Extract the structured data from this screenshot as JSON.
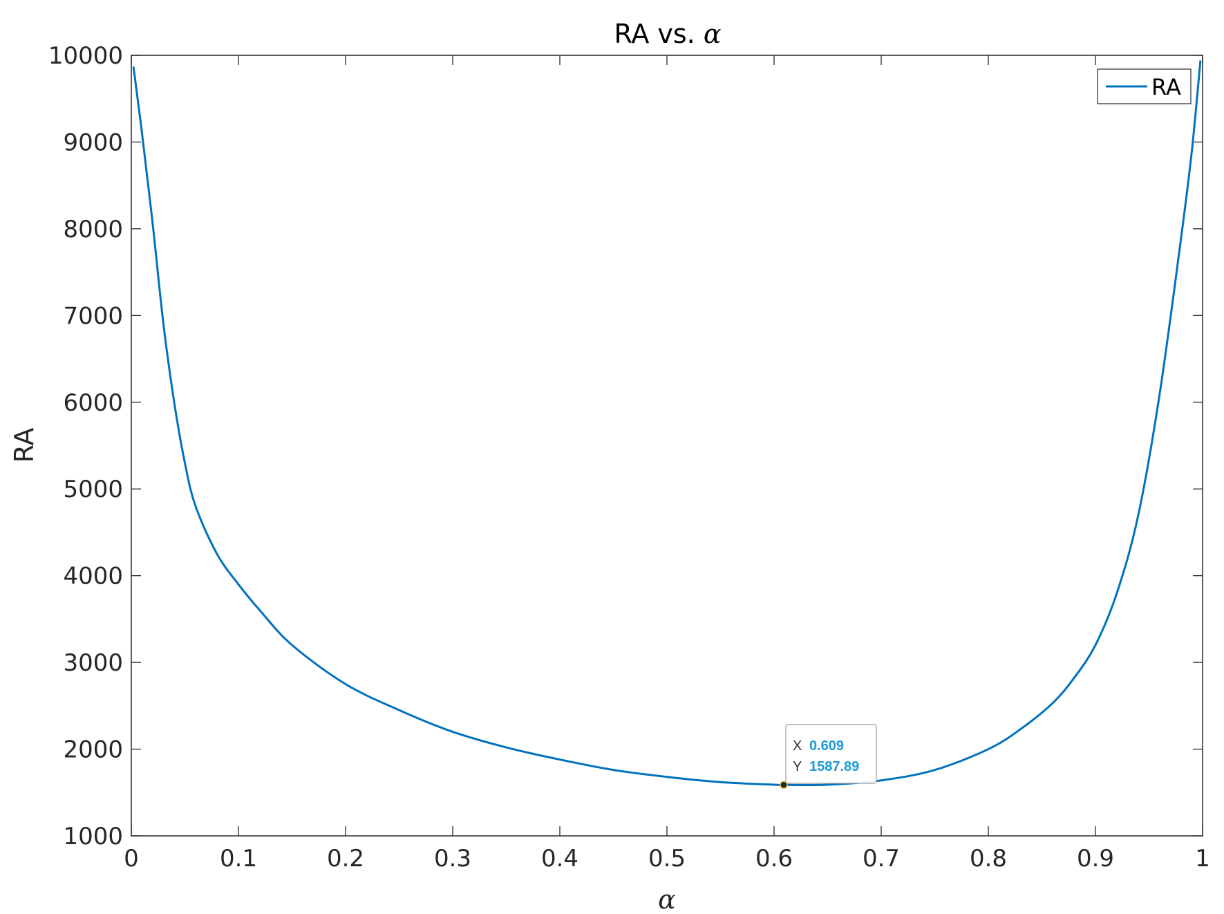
{
  "chart_data": {
    "type": "line",
    "title": "RA vs. α",
    "title_main": "RA vs.",
    "title_symbol": "α",
    "xlabel": "α",
    "ylabel": "RA",
    "xlim": [
      0,
      1
    ],
    "ylim": [
      1000,
      10000
    ],
    "x_ticks": [
      0,
      0.1,
      0.2,
      0.3,
      0.4,
      0.5,
      0.6,
      0.7,
      0.8,
      0.9,
      1
    ],
    "x_tick_labels": [
      "0",
      "0.1",
      "0.2",
      "0.3",
      "0.4",
      "0.5",
      "0.6",
      "0.7",
      "0.8",
      "0.9",
      "1"
    ],
    "y_ticks": [
      1000,
      2000,
      3000,
      4000,
      5000,
      6000,
      7000,
      8000,
      9000,
      10000
    ],
    "y_tick_labels": [
      "1000",
      "2000",
      "3000",
      "4000",
      "5000",
      "6000",
      "7000",
      "8000",
      "9000",
      "10000"
    ],
    "grid": false,
    "legend_position": "top-right",
    "series": [
      {
        "name": "RA",
        "color": "#0072bd",
        "x": [
          0.002,
          0.01,
          0.02,
          0.03,
          0.04,
          0.05,
          0.06,
          0.08,
          0.1,
          0.12,
          0.15,
          0.2,
          0.25,
          0.3,
          0.35,
          0.4,
          0.45,
          0.5,
          0.55,
          0.6,
          0.609,
          0.65,
          0.7,
          0.75,
          0.8,
          0.83,
          0.86,
          0.88,
          0.9,
          0.92,
          0.94,
          0.96,
          0.98,
          0.99,
          0.998
        ],
        "y": [
          9870,
          9100,
          8050,
          6900,
          6000,
          5300,
          4800,
          4250,
          3900,
          3600,
          3200,
          2750,
          2450,
          2200,
          2020,
          1880,
          1760,
          1680,
          1620,
          1590,
          1587.89,
          1590,
          1640,
          1760,
          2000,
          2230,
          2530,
          2820,
          3200,
          3800,
          4700,
          6100,
          7900,
          8900,
          9940
        ]
      }
    ],
    "datatip": {
      "x_key": "X",
      "x_value": "0.609",
      "y_key": "Y",
      "y_value": "1587.89",
      "x": 0.609,
      "y": 1587.89
    }
  }
}
